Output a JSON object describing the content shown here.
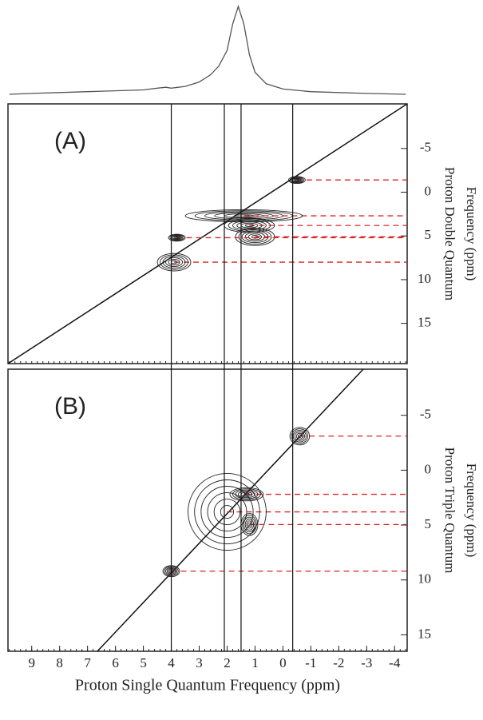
{
  "chart_data": [
    {
      "type": "line",
      "x": [
        9.8,
        9,
        8,
        7,
        6,
        5,
        4.5,
        4.2,
        4,
        3.5,
        3,
        2.6,
        2.3,
        2.0,
        1.8,
        1.6,
        1.4,
        1.2,
        1.0,
        0.6,
        0,
        -1,
        -2,
        -3,
        -4.4
      ],
      "values": [
        0,
        1,
        2,
        3,
        4,
        5,
        7,
        8,
        7,
        9,
        14,
        22,
        32,
        50,
        80,
        100,
        80,
        45,
        25,
        12,
        6,
        3,
        2,
        1,
        0
      ],
      "xlim": [
        9.85,
        -4.45
      ],
      "ylim": [
        0,
        100
      ],
      "color": "#555555"
    },
    {
      "type": "contour",
      "annotation": "(A)",
      "y_label": [
        "Proton Double Quantum",
        "Frequency (ppm)"
      ],
      "x": [
        -0.5,
        1.4,
        1.2,
        1.0,
        3.8,
        3.9
      ],
      "y": [
        -1.4,
        2.7,
        3.8,
        5.1,
        5.2,
        8.0
      ],
      "x_widths": [
        0.6,
        4.2,
        1.8,
        1.4,
        0.6,
        1.2
      ],
      "y_widths": [
        0.8,
        1.4,
        1.6,
        2.0,
        0.8,
        2.0
      ],
      "color": "#222222",
      "guide_color": "#d62728",
      "xlim": [
        9.85,
        -4.45
      ],
      "ylim": [
        -10.1,
        19.6
      ],
      "yticks": [
        -5,
        0,
        5,
        10,
        15
      ]
    },
    {
      "type": "contour",
      "annotation": "(B)",
      "y_label": [
        "Proton Triple Quantum",
        "Frequency (ppm)"
      ],
      "x_label": "Proton Single Quantum Frequency (ppm)",
      "x": [
        -0.6,
        2.0,
        1.3,
        1.2,
        4.0
      ],
      "y": [
        -3.1,
        3.8,
        2.2,
        4.95,
        9.2
      ],
      "x_widths": [
        0.7,
        2.8,
        1.2,
        0.6,
        0.6
      ],
      "y_widths": [
        1.6,
        7.0,
        1.2,
        2.0,
        1.0
      ],
      "color": "#222222",
      "guide_color": "#d62728",
      "xlim": [
        9.85,
        -4.45
      ],
      "ylim": [
        -9.2,
        16.5
      ],
      "yticks": [
        -5,
        0,
        5,
        10,
        15
      ],
      "xticks": [
        9,
        8,
        7,
        6,
        5,
        4,
        3,
        2,
        1,
        0,
        -1,
        -2,
        -3,
        -4
      ],
      "reference_x": [
        4.0,
        2.1,
        1.5,
        -0.35
      ]
    }
  ]
}
